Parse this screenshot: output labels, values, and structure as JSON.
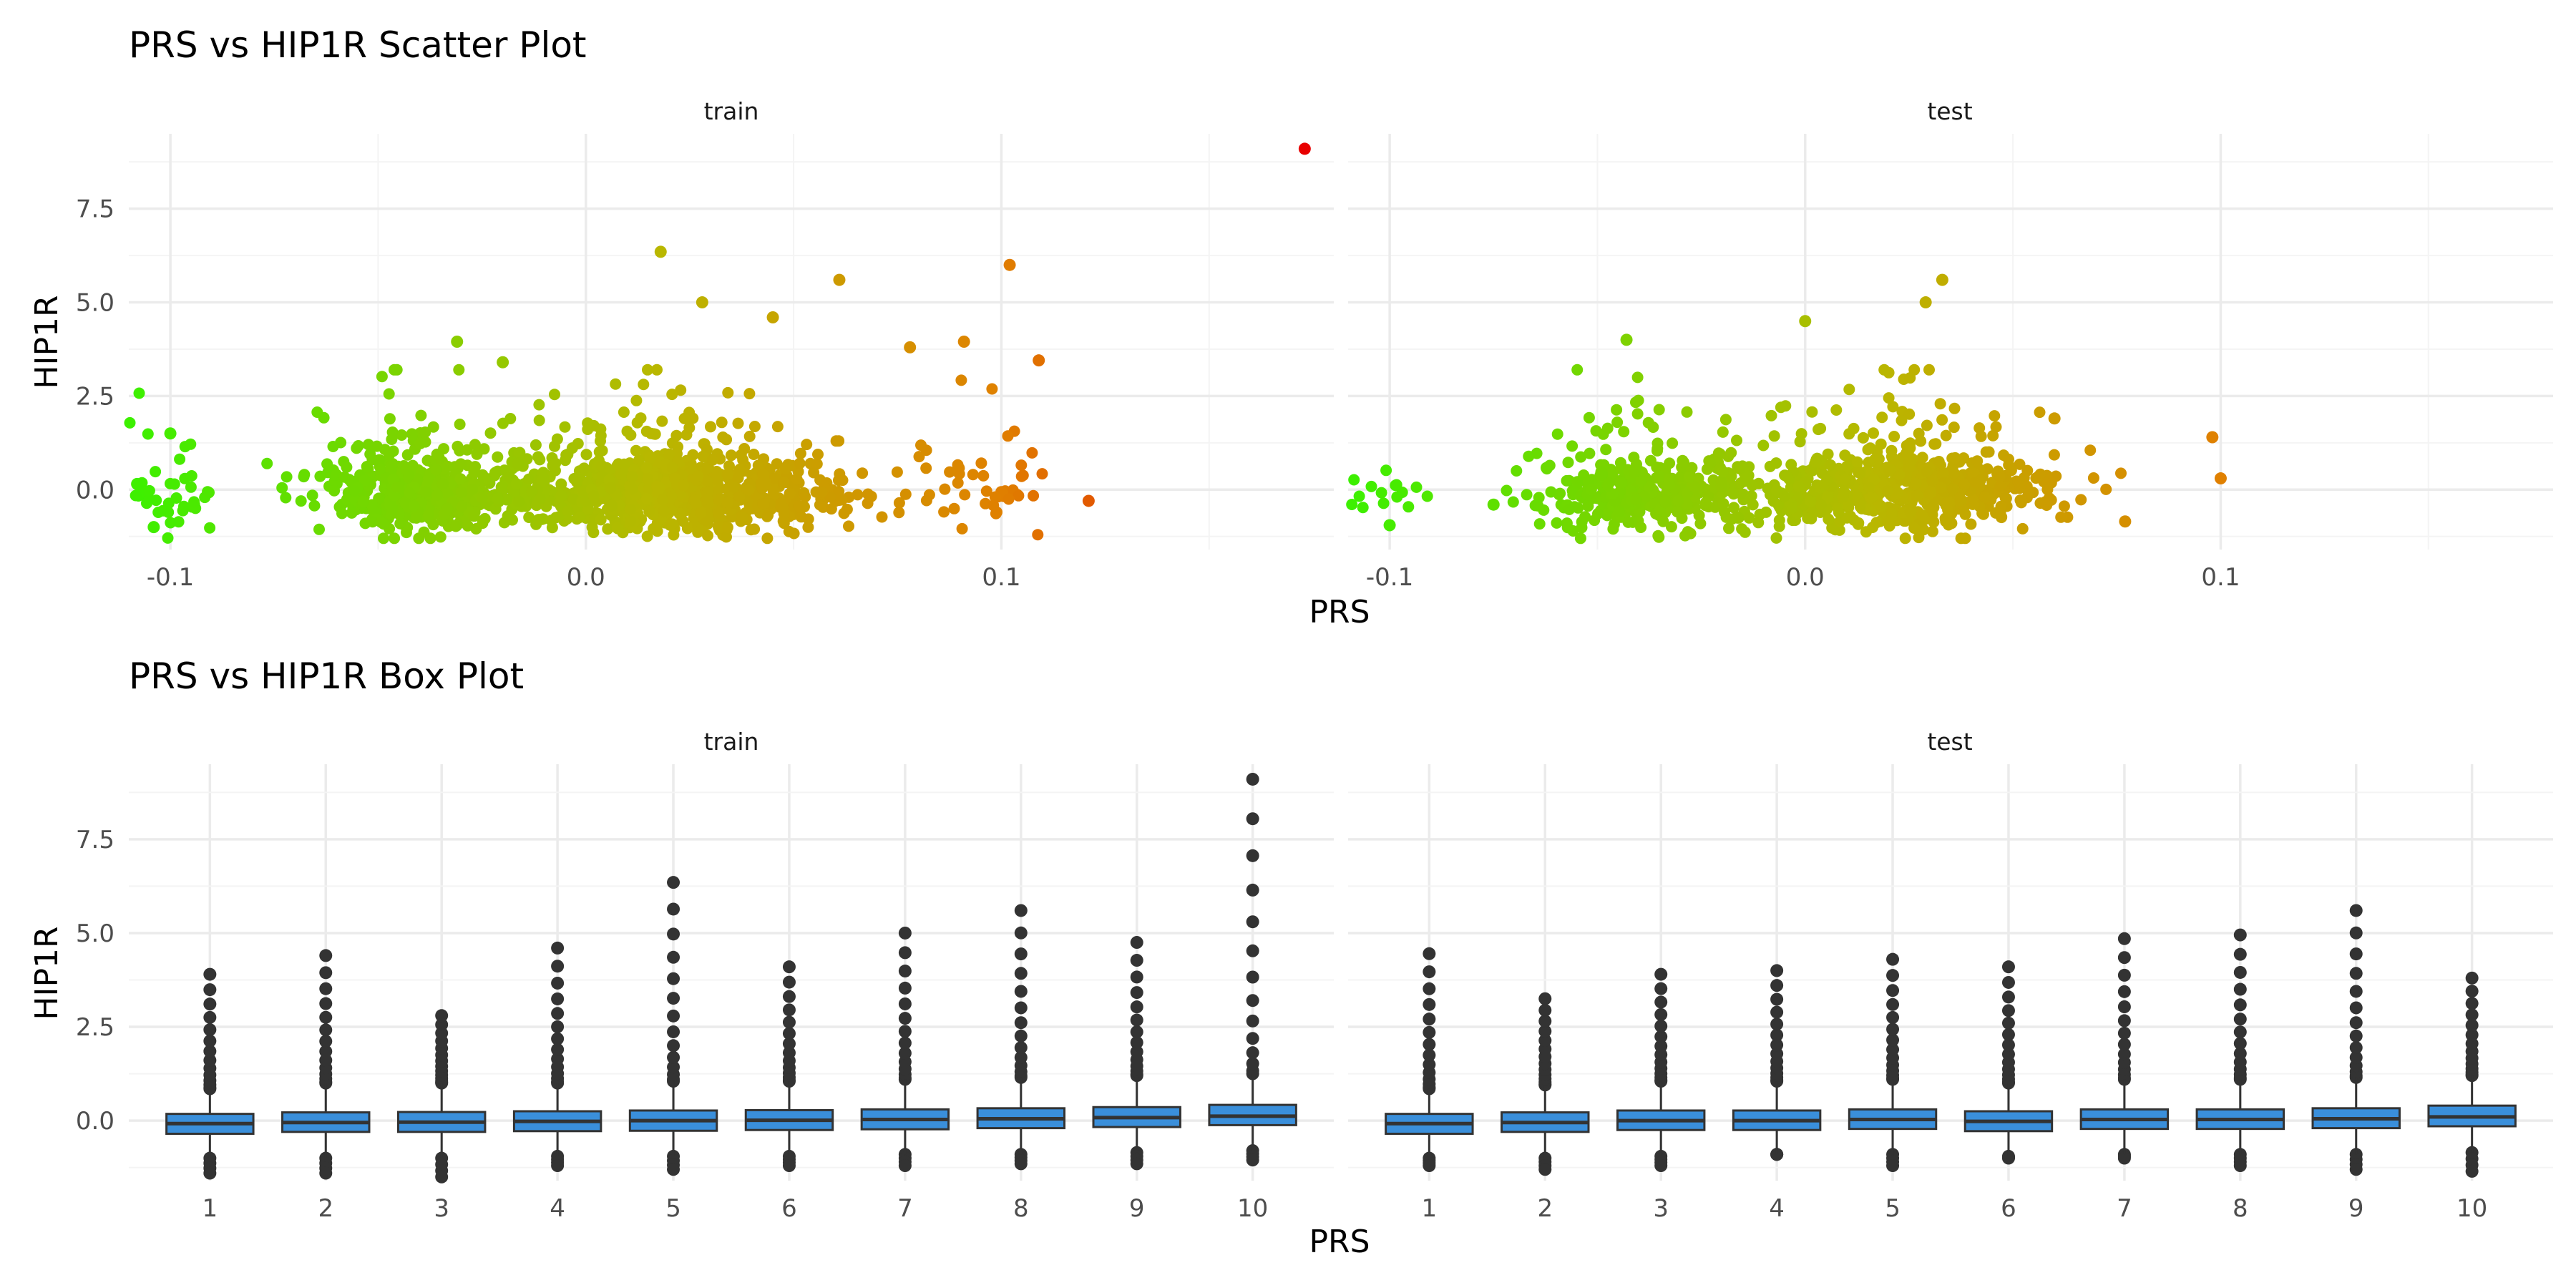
{
  "colors": {
    "background": "#ffffff",
    "grid_major": "#ebebeb",
    "grid_minor": "#f4f4f4",
    "box_fill": "#3a8fdb",
    "box_outline": "#333333",
    "gradient_low": "#3cf000",
    "gradient_mid": "#b8b800",
    "gradient_high2": "#e08000",
    "gradient_high": "#e80000"
  },
  "chart_data": [
    {
      "type": "scatter",
      "title": "PRS vs HIP1R Scatter Plot",
      "xlabel": "PRS",
      "ylabel": "HIP1R",
      "xlim": [
        -0.11,
        0.18
      ],
      "ylim": [
        -1.6,
        9.5
      ],
      "x_ticks": [
        -0.1,
        0.0,
        0.1
      ],
      "x_tick_labels": [
        "-0.1",
        "0.0",
        "0.1"
      ],
      "y_ticks": [
        0,
        2.5,
        5,
        7.5
      ],
      "y_tick_labels": [
        "0.0",
        "2.5",
        "5.0",
        "7.5"
      ],
      "color_mapping": "gradient by PRS (low = green, high = red)",
      "grid": true,
      "facets": [
        {
          "name": "train",
          "outlier_points": [
            {
              "x": 0.173,
              "y": 9.1
            },
            {
              "x": 0.102,
              "y": 6.0
            },
            {
              "x": 0.018,
              "y": 6.35
            },
            {
              "x": 0.061,
              "y": 5.6
            },
            {
              "x": 0.109,
              "y": 3.45
            },
            {
              "x": 0.121,
              "y": -0.3
            },
            {
              "x": 0.091,
              "y": 3.95
            },
            {
              "x": 0.078,
              "y": 3.8
            },
            {
              "x": -0.031,
              "y": 3.95
            },
            {
              "x": -0.1,
              "y": 1.5
            },
            {
              "x": -0.104,
              "y": -1.0
            },
            {
              "x": -0.108,
              "y": 0.15
            },
            {
              "x": -0.02,
              "y": 3.4
            },
            {
              "x": 0.028,
              "y": 5.0
            },
            {
              "x": 0.045,
              "y": 4.6
            }
          ]
        },
        {
          "name": "test",
          "outlier_points": [
            {
              "x": 0.033,
              "y": 5.6
            },
            {
              "x": 0.029,
              "y": 5.0
            },
            {
              "x": -0.043,
              "y": 4.0
            },
            {
              "x": 0.0,
              "y": 4.5
            },
            {
              "x": 0.1,
              "y": 0.3
            },
            {
              "x": 0.098,
              "y": 1.4
            },
            {
              "x": -0.075,
              "y": -0.4
            },
            {
              "x": -0.1,
              "y": -0.95
            },
            {
              "x": 0.077,
              "y": -0.85
            },
            {
              "x": 0.06,
              "y": 1.9
            }
          ]
        }
      ]
    },
    {
      "type": "box",
      "title": "PRS vs HIP1R Box Plot",
      "xlabel": "PRS",
      "ylabel": "HIP1R",
      "ylim": [
        -1.6,
        9.5
      ],
      "categories": [
        "1",
        "2",
        "3",
        "4",
        "5",
        "6",
        "7",
        "8",
        "9",
        "10"
      ],
      "y_ticks": [
        0,
        2.5,
        5,
        7.5
      ],
      "y_tick_labels": [
        "0.0",
        "2.5",
        "5.0",
        "7.5"
      ],
      "grid": true,
      "facets": [
        {
          "name": "train",
          "boxes": [
            {
              "q1": -0.35,
              "median": -0.08,
              "q3": 0.18,
              "whisker_low": -1.0,
              "whisker_high": 0.85,
              "max": 3.9,
              "min": -1.4
            },
            {
              "q1": -0.3,
              "median": -0.05,
              "q3": 0.22,
              "whisker_low": -1.0,
              "whisker_high": 1.0,
              "max": 4.4,
              "min": -1.4
            },
            {
              "q1": -0.3,
              "median": -0.04,
              "q3": 0.23,
              "whisker_low": -1.0,
              "whisker_high": 1.0,
              "max": 2.8,
              "min": -1.5
            },
            {
              "q1": -0.28,
              "median": -0.02,
              "q3": 0.25,
              "whisker_low": -0.95,
              "whisker_high": 1.0,
              "max": 4.6,
              "min": -1.2
            },
            {
              "q1": -0.27,
              "median": 0.0,
              "q3": 0.27,
              "whisker_low": -0.95,
              "whisker_high": 1.05,
              "max": 6.35,
              "min": -1.3
            },
            {
              "q1": -0.25,
              "median": 0.01,
              "q3": 0.28,
              "whisker_low": -0.95,
              "whisker_high": 1.05,
              "max": 4.1,
              "min": -1.2
            },
            {
              "q1": -0.23,
              "median": 0.03,
              "q3": 0.3,
              "whisker_low": -0.9,
              "whisker_high": 1.1,
              "max": 5.0,
              "min": -1.2
            },
            {
              "q1": -0.2,
              "median": 0.05,
              "q3": 0.33,
              "whisker_low": -0.9,
              "whisker_high": 1.15,
              "max": 5.6,
              "min": -1.15
            },
            {
              "q1": -0.17,
              "median": 0.08,
              "q3": 0.36,
              "whisker_low": -0.85,
              "whisker_high": 1.2,
              "max": 4.75,
              "min": -1.15
            },
            {
              "q1": -0.12,
              "median": 0.12,
              "q3": 0.42,
              "whisker_low": -0.8,
              "whisker_high": 1.25,
              "max": 9.1,
              "min": -1.05
            }
          ]
        },
        {
          "name": "test",
          "boxes": [
            {
              "q1": -0.35,
              "median": -0.08,
              "q3": 0.18,
              "whisker_low": -1.0,
              "whisker_high": 0.85,
              "max": 4.45,
              "min": -1.2
            },
            {
              "q1": -0.3,
              "median": -0.05,
              "q3": 0.22,
              "whisker_low": -1.0,
              "whisker_high": 0.95,
              "max": 3.25,
              "min": -1.3
            },
            {
              "q1": -0.25,
              "median": 0.0,
              "q3": 0.27,
              "whisker_low": -0.95,
              "whisker_high": 1.05,
              "max": 3.9,
              "min": -1.2
            },
            {
              "q1": -0.25,
              "median": 0.0,
              "q3": 0.27,
              "whisker_low": -0.9,
              "whisker_high": 1.05,
              "max": 4.0,
              "min": -0.9
            },
            {
              "q1": -0.22,
              "median": 0.03,
              "q3": 0.3,
              "whisker_low": -0.9,
              "whisker_high": 1.1,
              "max": 4.3,
              "min": -1.2
            },
            {
              "q1": -0.28,
              "median": -0.02,
              "q3": 0.25,
              "whisker_low": -0.95,
              "whisker_high": 1.0,
              "max": 4.1,
              "min": -1.0
            },
            {
              "q1": -0.22,
              "median": 0.03,
              "q3": 0.3,
              "whisker_low": -0.9,
              "whisker_high": 1.1,
              "max": 4.85,
              "min": -1.0
            },
            {
              "q1": -0.22,
              "median": 0.03,
              "q3": 0.3,
              "whisker_low": -0.9,
              "whisker_high": 1.1,
              "max": 4.95,
              "min": -1.2
            },
            {
              "q1": -0.2,
              "median": 0.05,
              "q3": 0.33,
              "whisker_low": -0.9,
              "whisker_high": 1.15,
              "max": 5.6,
              "min": -1.3
            },
            {
              "q1": -0.15,
              "median": 0.1,
              "q3": 0.4,
              "whisker_low": -0.85,
              "whisker_high": 1.2,
              "max": 3.8,
              "min": -1.35
            }
          ]
        }
      ]
    }
  ]
}
